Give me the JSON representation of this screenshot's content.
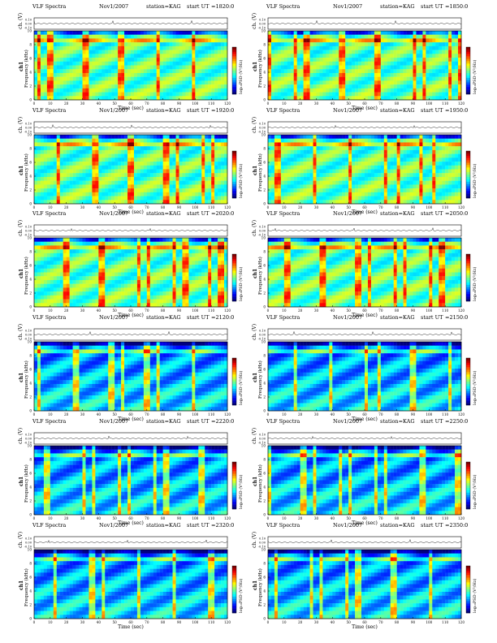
{
  "figure": {
    "title_prefix": "VLF Spectra",
    "date": "Nov1/2007",
    "station_label": "station=KAG",
    "ut_prefix": "start  UT",
    "ch_label": "ch. (V)",
    "channel_label": "ch1",
    "freq_label": "Frequency (kHz)",
    "time_label": "Time (sec)",
    "colorbar_label": "log₁₀PSD (V²/Hz)"
  },
  "colors": {
    "colormap": [
      "#00007f",
      "#0000ff",
      "#007fff",
      "#00ffff",
      "#7fff7f",
      "#ffff00",
      "#ff7f00",
      "#ff0000",
      "#7f0000"
    ],
    "frame": "#000000"
  },
  "chart_data": [
    {
      "type": "heatmap",
      "start_ut": "=1820:0",
      "x_ticks": [
        "0",
        "10",
        "20",
        "30",
        "40",
        "50",
        "60",
        "70",
        "80",
        "90",
        "100",
        "110",
        "120"
      ],
      "y_ticks": [
        "0",
        "2",
        "4",
        "6",
        "8",
        "10"
      ],
      "ch_ticks": [
        "0.10",
        "0.00",
        "-0.10"
      ],
      "xlim": [
        0,
        120
      ],
      "ylim": [
        0,
        10
      ],
      "intensity": "high"
    },
    {
      "type": "heatmap",
      "start_ut": "=1850:0",
      "x_ticks": [
        "0",
        "10",
        "20",
        "30",
        "40",
        "50",
        "60",
        "70",
        "80",
        "90",
        "100",
        "110",
        "120"
      ],
      "y_ticks": [
        "0",
        "2",
        "4",
        "6",
        "8",
        "10"
      ],
      "ch_ticks": [
        "0.10",
        "0.00",
        "-0.10"
      ],
      "xlim": [
        0,
        120
      ],
      "ylim": [
        0,
        10
      ],
      "intensity": "high"
    },
    {
      "type": "heatmap",
      "start_ut": "=1920:0",
      "x_ticks": [
        "0",
        "10",
        "20",
        "30",
        "40",
        "50",
        "60",
        "70",
        "80",
        "90",
        "100",
        "110",
        "120"
      ],
      "y_ticks": [
        "0",
        "2",
        "4",
        "6",
        "8",
        "10"
      ],
      "ch_ticks": [
        "0.10",
        "0.00",
        "-0.10"
      ],
      "xlim": [
        0,
        120
      ],
      "ylim": [
        0,
        10
      ],
      "intensity": "high"
    },
    {
      "type": "heatmap",
      "start_ut": "=1950:0",
      "x_ticks": [
        "0",
        "10",
        "20",
        "30",
        "40",
        "50",
        "60",
        "70",
        "80",
        "90",
        "100",
        "110",
        "120"
      ],
      "y_ticks": [
        "0",
        "2",
        "4",
        "6",
        "8",
        "10"
      ],
      "ch_ticks": [
        "0.10",
        "0.00",
        "-0.10"
      ],
      "xlim": [
        0,
        120
      ],
      "ylim": [
        0,
        10
      ],
      "intensity": "high"
    },
    {
      "type": "heatmap",
      "start_ut": "=2020:0",
      "x_ticks": [
        "0",
        "10",
        "20",
        "30",
        "40",
        "50",
        "60",
        "70",
        "80",
        "90",
        "100",
        "110",
        "120"
      ],
      "y_ticks": [
        "0",
        "2",
        "4",
        "6",
        "8",
        "10"
      ],
      "ch_ticks": [
        "0.10",
        "0.00",
        "-0.10"
      ],
      "xlim": [
        0,
        120
      ],
      "ylim": [
        0,
        10
      ],
      "intensity": "high"
    },
    {
      "type": "heatmap",
      "start_ut": "=2050:0",
      "x_ticks": [
        "0",
        "10",
        "20",
        "30",
        "40",
        "50",
        "60",
        "70",
        "80",
        "90",
        "100",
        "110",
        "120"
      ],
      "y_ticks": [
        "0",
        "2",
        "4",
        "6",
        "8",
        "10"
      ],
      "ch_ticks": [
        "0.10",
        "0.00",
        "-0.10"
      ],
      "xlim": [
        0,
        120
      ],
      "ylim": [
        0,
        10
      ],
      "intensity": "high"
    },
    {
      "type": "heatmap",
      "start_ut": "=2120:0",
      "x_ticks": [
        "0",
        "10",
        "20",
        "30",
        "40",
        "50",
        "60",
        "70",
        "80",
        "90",
        "100",
        "110",
        "120"
      ],
      "y_ticks": [
        "0",
        "2",
        "4",
        "6",
        "8",
        "10"
      ],
      "ch_ticks": [
        "0.10",
        "0.00",
        "-0.10"
      ],
      "xlim": [
        0,
        120
      ],
      "ylim": [
        0,
        10
      ],
      "intensity": "medium"
    },
    {
      "type": "heatmap",
      "start_ut": "=2150:0",
      "x_ticks": [
        "0",
        "10",
        "20",
        "30",
        "40",
        "50",
        "60",
        "70",
        "80",
        "90",
        "100",
        "110",
        "120"
      ],
      "y_ticks": [
        "0",
        "2",
        "4",
        "6",
        "8",
        "10"
      ],
      "ch_ticks": [
        "0.10",
        "0.00",
        "-0.10"
      ],
      "xlim": [
        0,
        120
      ],
      "ylim": [
        0,
        10
      ],
      "intensity": "medium"
    },
    {
      "type": "heatmap",
      "start_ut": "=2220:0",
      "x_ticks": [
        "0",
        "10",
        "20",
        "30",
        "40",
        "50",
        "60",
        "70",
        "80",
        "90",
        "100",
        "110",
        "120"
      ],
      "y_ticks": [
        "0",
        "2",
        "4",
        "6",
        "8",
        "10"
      ],
      "ch_ticks": [
        "0.10",
        "0.00",
        "-0.10"
      ],
      "xlim": [
        0,
        120
      ],
      "ylim": [
        0,
        10
      ],
      "intensity": "medium"
    },
    {
      "type": "heatmap",
      "start_ut": "=2250:0",
      "x_ticks": [
        "0",
        "10",
        "20",
        "30",
        "40",
        "50",
        "60",
        "70",
        "80",
        "90",
        "100",
        "110",
        "120"
      ],
      "y_ticks": [
        "0",
        "2",
        "4",
        "6",
        "8",
        "10"
      ],
      "ch_ticks": [
        "0.10",
        "0.00",
        "-0.10"
      ],
      "xlim": [
        0,
        120
      ],
      "ylim": [
        0,
        10
      ],
      "intensity": "medium"
    },
    {
      "type": "heatmap",
      "start_ut": "=2320:0",
      "x_ticks": [
        "0",
        "10",
        "20",
        "30",
        "40",
        "50",
        "60",
        "70",
        "80",
        "90",
        "100",
        "110",
        "120"
      ],
      "y_ticks": [
        "0",
        "2",
        "4",
        "6",
        "8",
        "10"
      ],
      "ch_ticks": [
        "0.10",
        "0.00",
        "-0.10"
      ],
      "xlim": [
        0,
        120
      ],
      "ylim": [
        0,
        10
      ],
      "intensity": "medium"
    },
    {
      "type": "heatmap",
      "start_ut": "=2350:0",
      "x_ticks": [
        "0",
        "10",
        "20",
        "30",
        "40",
        "50",
        "60",
        "70",
        "80",
        "90",
        "100",
        "110",
        "120"
      ],
      "y_ticks": [
        "0",
        "2",
        "4",
        "6",
        "8",
        "10"
      ],
      "ch_ticks": [
        "0.10",
        "0.00",
        "-0.10"
      ],
      "xlim": [
        0,
        120
      ],
      "ylim": [
        0,
        10
      ],
      "intensity": "medium"
    }
  ]
}
